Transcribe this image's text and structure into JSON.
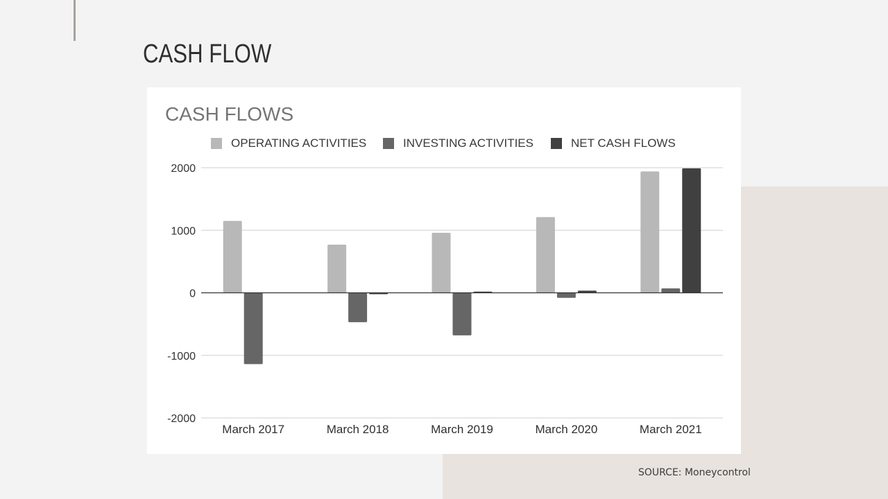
{
  "slide": {
    "title": "CASH FLOW",
    "source": "SOURCE: Moneycontrol"
  },
  "colors": {
    "background": "#f3f3f3",
    "accent_block": "#e8e3df",
    "accent_line": "#a8a29c"
  },
  "chart_data": {
    "type": "bar",
    "title": "CASH FLOWS",
    "categories": [
      "March 2017",
      "March 2018",
      "March 2019",
      "March 2020",
      "March 2021"
    ],
    "series": [
      {
        "name": "OPERATING ACTIVITIES",
        "color": "#b8b8b8",
        "values": [
          1150,
          770,
          960,
          1210,
          1940
        ]
      },
      {
        "name": "INVESTING ACTIVITIES",
        "color": "#666666",
        "values": [
          -1140,
          -470,
          -680,
          -80,
          70
        ]
      },
      {
        "name": "NET CASH FLOWS",
        "color": "#404040",
        "values": [
          0,
          -20,
          20,
          35,
          1990
        ]
      }
    ],
    "y_ticks": [
      "2000",
      "1000",
      "0",
      "-1000",
      "-2000"
    ],
    "ylim": [
      -2000,
      2000
    ],
    "grid": true,
    "legend_position": "top"
  }
}
